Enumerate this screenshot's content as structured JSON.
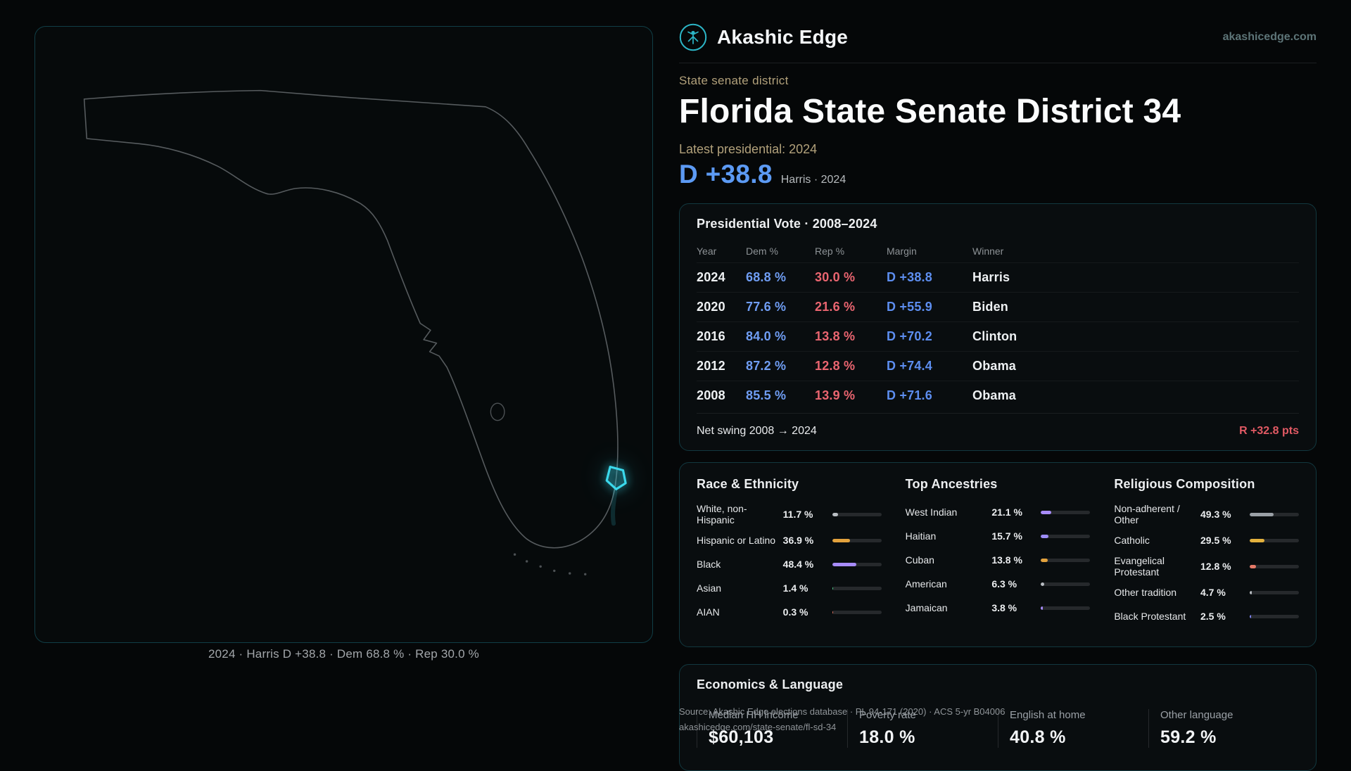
{
  "brand": {
    "name": "Akashic Edge",
    "website": "akashicedge.com"
  },
  "district": {
    "kicker": "State senate district",
    "title": "Florida State Senate District 34",
    "latest_label": "Latest presidential: 2024",
    "headline_margin": "D +38.8",
    "headline_context": "Harris · 2024"
  },
  "map": {
    "caption": "2024 · Harris D +38.8 · Dem 68.8 % · Rep 30.0 %"
  },
  "presidential": {
    "title": "Presidential Vote · 2008–2024",
    "columns": [
      "Year",
      "Dem %",
      "Rep %",
      "Margin",
      "Winner"
    ],
    "rows": [
      {
        "year": "2024",
        "dem": "68.8 %",
        "rep": "30.0 %",
        "margin": "D +38.8",
        "winner": "Harris"
      },
      {
        "year": "2020",
        "dem": "77.6 %",
        "rep": "21.6 %",
        "margin": "D +55.9",
        "winner": "Biden"
      },
      {
        "year": "2016",
        "dem": "84.0 %",
        "rep": "13.8 %",
        "margin": "D +70.2",
        "winner": "Clinton"
      },
      {
        "year": "2012",
        "dem": "87.2 %",
        "rep": "12.8 %",
        "margin": "D +74.4",
        "winner": "Obama"
      },
      {
        "year": "2008",
        "dem": "85.5 %",
        "rep": "13.9 %",
        "margin": "D +71.6",
        "winner": "Obama"
      }
    ],
    "net_swing_label": "Net swing 2008 → 2024",
    "net_swing_value": "R +32.8 pts"
  },
  "demographics": {
    "race": {
      "title": "Race & Ethnicity",
      "rows": [
        {
          "label": "White, non-Hispanic",
          "value": "11.7 %",
          "pct": 11.7,
          "color": "#b9bec3"
        },
        {
          "label": "Hispanic or Latino",
          "value": "36.9 %",
          "pct": 36.9,
          "color": "#e3a23d"
        },
        {
          "label": "Black",
          "value": "48.4 %",
          "pct": 48.4,
          "color": "#a78bfa"
        },
        {
          "label": "Asian",
          "value": "1.4 %",
          "pct": 1.4,
          "color": "#4fd08a"
        },
        {
          "label": "AIAN",
          "value": "0.3 %",
          "pct": 0.3,
          "color": "#e0705a"
        }
      ]
    },
    "ancestries": {
      "title": "Top Ancestries",
      "rows": [
        {
          "label": "West Indian",
          "value": "21.1 %",
          "pct": 21.1,
          "color": "#a78bfa"
        },
        {
          "label": "Haitian",
          "value": "15.7 %",
          "pct": 15.7,
          "color": "#9d8df7"
        },
        {
          "label": "Cuban",
          "value": "13.8 %",
          "pct": 13.8,
          "color": "#e3a23d"
        },
        {
          "label": "American",
          "value": "6.3 %",
          "pct": 6.3,
          "color": "#b9bec3"
        },
        {
          "label": "Jamaican",
          "value": "3.8 %",
          "pct": 3.8,
          "color": "#a78bfa"
        }
      ]
    },
    "religion": {
      "title": "Religious Composition",
      "rows": [
        {
          "label": "Non-adherent / Other",
          "value": "49.3 %",
          "pct": 49.3,
          "color": "#9aa0a6"
        },
        {
          "label": "Catholic",
          "value": "29.5 %",
          "pct": 29.5,
          "color": "#e3b13d"
        },
        {
          "label": "Evangelical Protestant",
          "value": "12.8 %",
          "pct": 12.8,
          "color": "#e57a68"
        },
        {
          "label": "Other tradition",
          "value": "4.7 %",
          "pct": 4.7,
          "color": "#b9bec3"
        },
        {
          "label": "Black Protestant",
          "value": "2.5 %",
          "pct": 2.5,
          "color": "#7d82f0"
        }
      ]
    }
  },
  "economics": {
    "title": "Economics & Language",
    "stats": [
      {
        "label": "Median HH income",
        "value": "$60,103"
      },
      {
        "label": "Poverty rate",
        "value": "18.0 %"
      },
      {
        "label": "English at home",
        "value": "40.8 %"
      },
      {
        "label": "Other language",
        "value": "59.2 %"
      }
    ]
  },
  "footer": {
    "source": "Source: Akashic Edge elections database · PL 94-171 (2020) · ACS 5-yr B04006",
    "permalink": "akashicedge.com/state-senate/fl-sd-34"
  },
  "colors": {
    "accent": "#35d5e8",
    "dem_blue": "#5c9af4",
    "rep_red": "#e25a64",
    "gold": "#b2a17b"
  }
}
